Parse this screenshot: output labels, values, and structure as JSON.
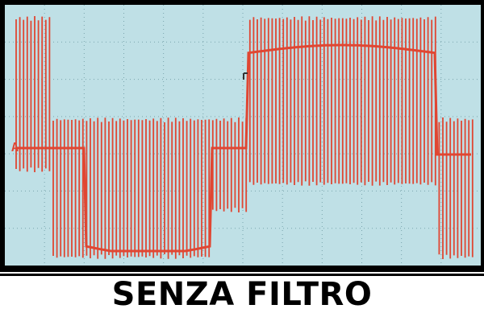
{
  "caption": {
    "text": "SENZA FILTRO"
  },
  "scope": {
    "channel_marker": "A",
    "trace_color": "#e04632",
    "screen_color": "#bfe0e6",
    "grid_color": "#7aa5ad"
  }
}
